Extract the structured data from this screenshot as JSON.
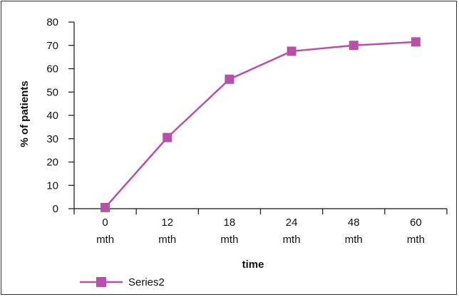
{
  "chart_data": {
    "type": "line",
    "categories": [
      "0 mth",
      "12 mth",
      "18 mth",
      "24 mth",
      "48 mth",
      "60 mth"
    ],
    "category_lines": [
      [
        "0",
        "mth"
      ],
      [
        "12",
        "mth"
      ],
      [
        "18",
        "mth"
      ],
      [
        "24",
        "mth"
      ],
      [
        "48",
        "mth"
      ],
      [
        "60",
        "mth"
      ]
    ],
    "series": [
      {
        "name": "Series2",
        "values": [
          0.5,
          30.5,
          55.5,
          67.5,
          70,
          71.5
        ],
        "color": "#b84fa9",
        "marker": "square"
      }
    ],
    "xlabel": "time",
    "ylabel": "% of patients",
    "ylim": [
      0,
      80
    ],
    "yticks": [
      0,
      10,
      20,
      30,
      40,
      50,
      60,
      70,
      80
    ],
    "grid": false,
    "legend": "bottom-left"
  }
}
